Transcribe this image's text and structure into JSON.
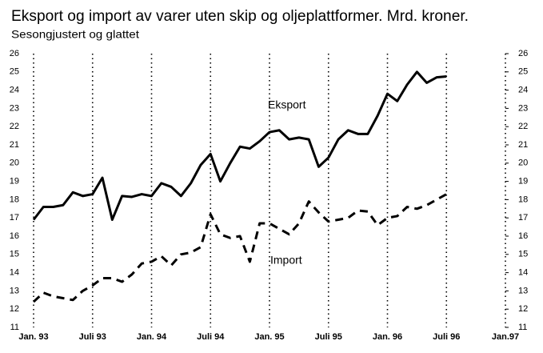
{
  "chart_data": {
    "type": "line",
    "title": "Eksport og import av varer uten skip og oljeplattformer. Mrd. kroner.",
    "subtitle": "Sesongjustert og glattet",
    "x": [
      1993,
      1993.0833,
      1993.1667,
      1993.25,
      1993.3333,
      1993.4167,
      1993.5,
      1993.5833,
      1993.6667,
      1993.75,
      1993.8333,
      1993.9167,
      1994,
      1994.0833,
      1994.1667,
      1994.25,
      1994.3333,
      1994.4167,
      1994.5,
      1994.5833,
      1994.6667,
      1994.75,
      1994.8333,
      1994.9167,
      1995,
      1995.0833,
      1995.1667,
      1995.25,
      1995.3333,
      1995.4167,
      1995.5,
      1995.5833,
      1995.6667,
      1995.75,
      1995.8333,
      1995.9167,
      1996,
      1996.0833,
      1996.1667,
      1996.25,
      1996.3333,
      1996.4167,
      1996.5
    ],
    "series": [
      {
        "name": "Eksport",
        "color": "#000000",
        "dash": "solid",
        "values": [
          16.9,
          17.6,
          17.6,
          17.7,
          18.4,
          18.2,
          18.3,
          19.2,
          16.9,
          18.2,
          18.15,
          18.3,
          18.2,
          18.9,
          18.7,
          18.2,
          18.9,
          19.9,
          20.5,
          19.0,
          20.0,
          20.9,
          20.8,
          21.2,
          21.7,
          21.8,
          21.3,
          21.4,
          21.3,
          19.8,
          20.3,
          21.3,
          21.8,
          21.6,
          21.6,
          22.6,
          23.8,
          23.4,
          24.3,
          25.0,
          24.4,
          24.7,
          24.75
        ]
      },
      {
        "name": "Import",
        "color": "#000000",
        "dash": "dashed",
        "values": [
          12.4,
          12.9,
          12.7,
          12.6,
          12.5,
          13.0,
          13.3,
          13.7,
          13.7,
          13.5,
          13.9,
          14.5,
          14.6,
          14.9,
          14.4,
          15.0,
          15.1,
          15.4,
          17.2,
          16.1,
          15.9,
          16.0,
          14.6,
          16.7,
          16.7,
          16.4,
          16.1,
          16.7,
          17.9,
          17.3,
          16.8,
          16.9,
          17.0,
          17.4,
          17.35,
          16.6,
          17.0,
          17.1,
          17.6,
          17.5,
          17.7,
          18.0,
          18.3
        ]
      }
    ],
    "xlim": [
      1993,
      1997
    ],
    "xticks": [
      {
        "value": 1993,
        "label": "Jan. 93"
      },
      {
        "value": 1993.5,
        "label": "Juli 93"
      },
      {
        "value": 1994,
        "label": "Jan. 94"
      },
      {
        "value": 1994.5,
        "label": "Juli 94"
      },
      {
        "value": 1995,
        "label": "Jan. 95"
      },
      {
        "value": 1995.5,
        "label": "Juli 95"
      },
      {
        "value": 1996,
        "label": "Jan. 96"
      },
      {
        "value": 1996.5,
        "label": "Juli 96"
      },
      {
        "value": 1997,
        "label": "Jan.97"
      }
    ],
    "ylim": [
      11,
      26
    ],
    "yticks": [
      11,
      12,
      13,
      14,
      15,
      16,
      17,
      18,
      19,
      20,
      21,
      22,
      23,
      24,
      25,
      26
    ],
    "y2lim": [
      11,
      26
    ],
    "y2ticks": [
      11,
      12,
      13,
      14,
      15,
      16,
      17,
      18,
      19,
      20,
      21,
      22,
      23,
      24,
      25,
      26
    ],
    "grid": "x-dotted"
  }
}
